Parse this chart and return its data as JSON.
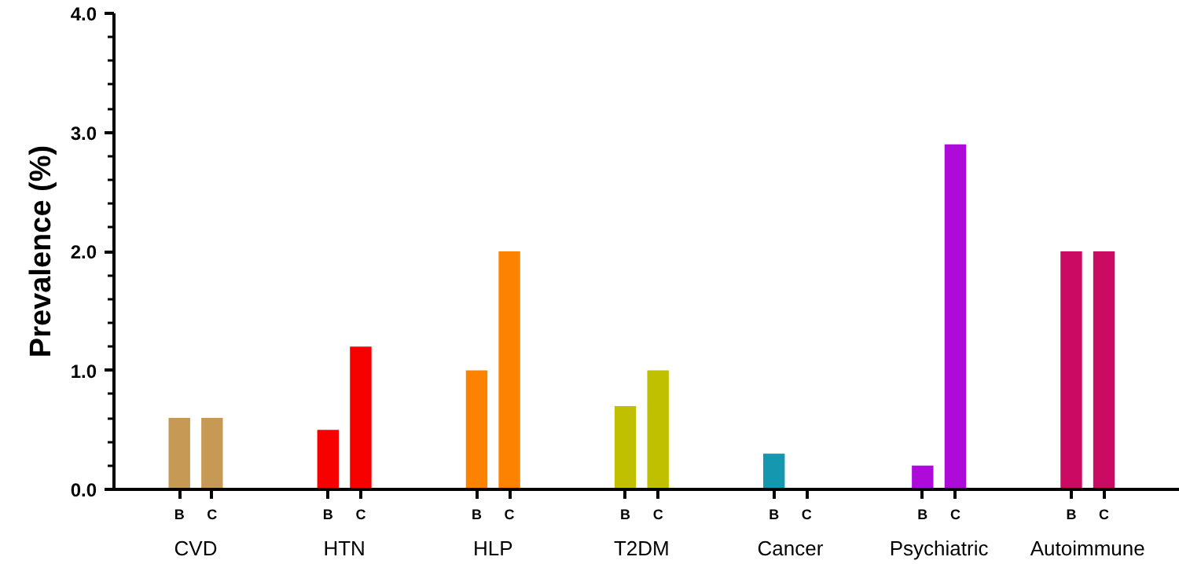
{
  "chart_data": {
    "type": "bar",
    "ylabel": "Prevalence (%)",
    "categories": [
      "CVD",
      "HTN",
      "HLP",
      "T2DM",
      "Cancer",
      "Psychiatric",
      "Autoimmune"
    ],
    "series": [
      {
        "name": "B",
        "colors": [
          "#c69a55",
          "#f70000",
          "#fd8200",
          "#c0c000",
          "#1498b0",
          "#ae0bdb",
          "#cb0a63"
        ],
        "values": [
          0.6,
          0.5,
          1.0,
          0.7,
          0.3,
          0.2,
          2.0
        ]
      },
      {
        "name": "C",
        "colors": [
          "#c69a55",
          "#f70000",
          "#fd8200",
          "#c0c000",
          "#1498b0",
          "#ae0bdb",
          "#cb0a63"
        ],
        "values": [
          0.6,
          1.2,
          2.0,
          1.0,
          0.0,
          2.9,
          2.0
        ]
      }
    ],
    "ylim": [
      0,
      4.0
    ],
    "yticks": [
      {
        "value": 0,
        "label": "0.0"
      },
      {
        "value": 0.2,
        "label": null
      },
      {
        "value": 0.4,
        "label": null
      },
      {
        "value": 0.6,
        "label": null
      },
      {
        "value": 0.8,
        "label": null
      },
      {
        "value": 1,
        "label": "1.0"
      },
      {
        "value": 1.2,
        "label": null
      },
      {
        "value": 1.4,
        "label": null
      },
      {
        "value": 1.6,
        "label": null
      },
      {
        "value": 1.8,
        "label": null
      },
      {
        "value": 2,
        "label": "2.0"
      },
      {
        "value": 2.2,
        "label": null
      },
      {
        "value": 2.4,
        "label": null
      },
      {
        "value": 2.6,
        "label": null
      },
      {
        "value": 2.8,
        "label": null
      },
      {
        "value": 3,
        "label": "3.0"
      },
      {
        "value": 3.2,
        "label": null
      },
      {
        "value": 3.4,
        "label": null
      },
      {
        "value": 3.6,
        "label": null
      },
      {
        "value": 3.8,
        "label": null
      },
      {
        "value": 4,
        "label": "4.0"
      }
    ],
    "grid": false
  }
}
